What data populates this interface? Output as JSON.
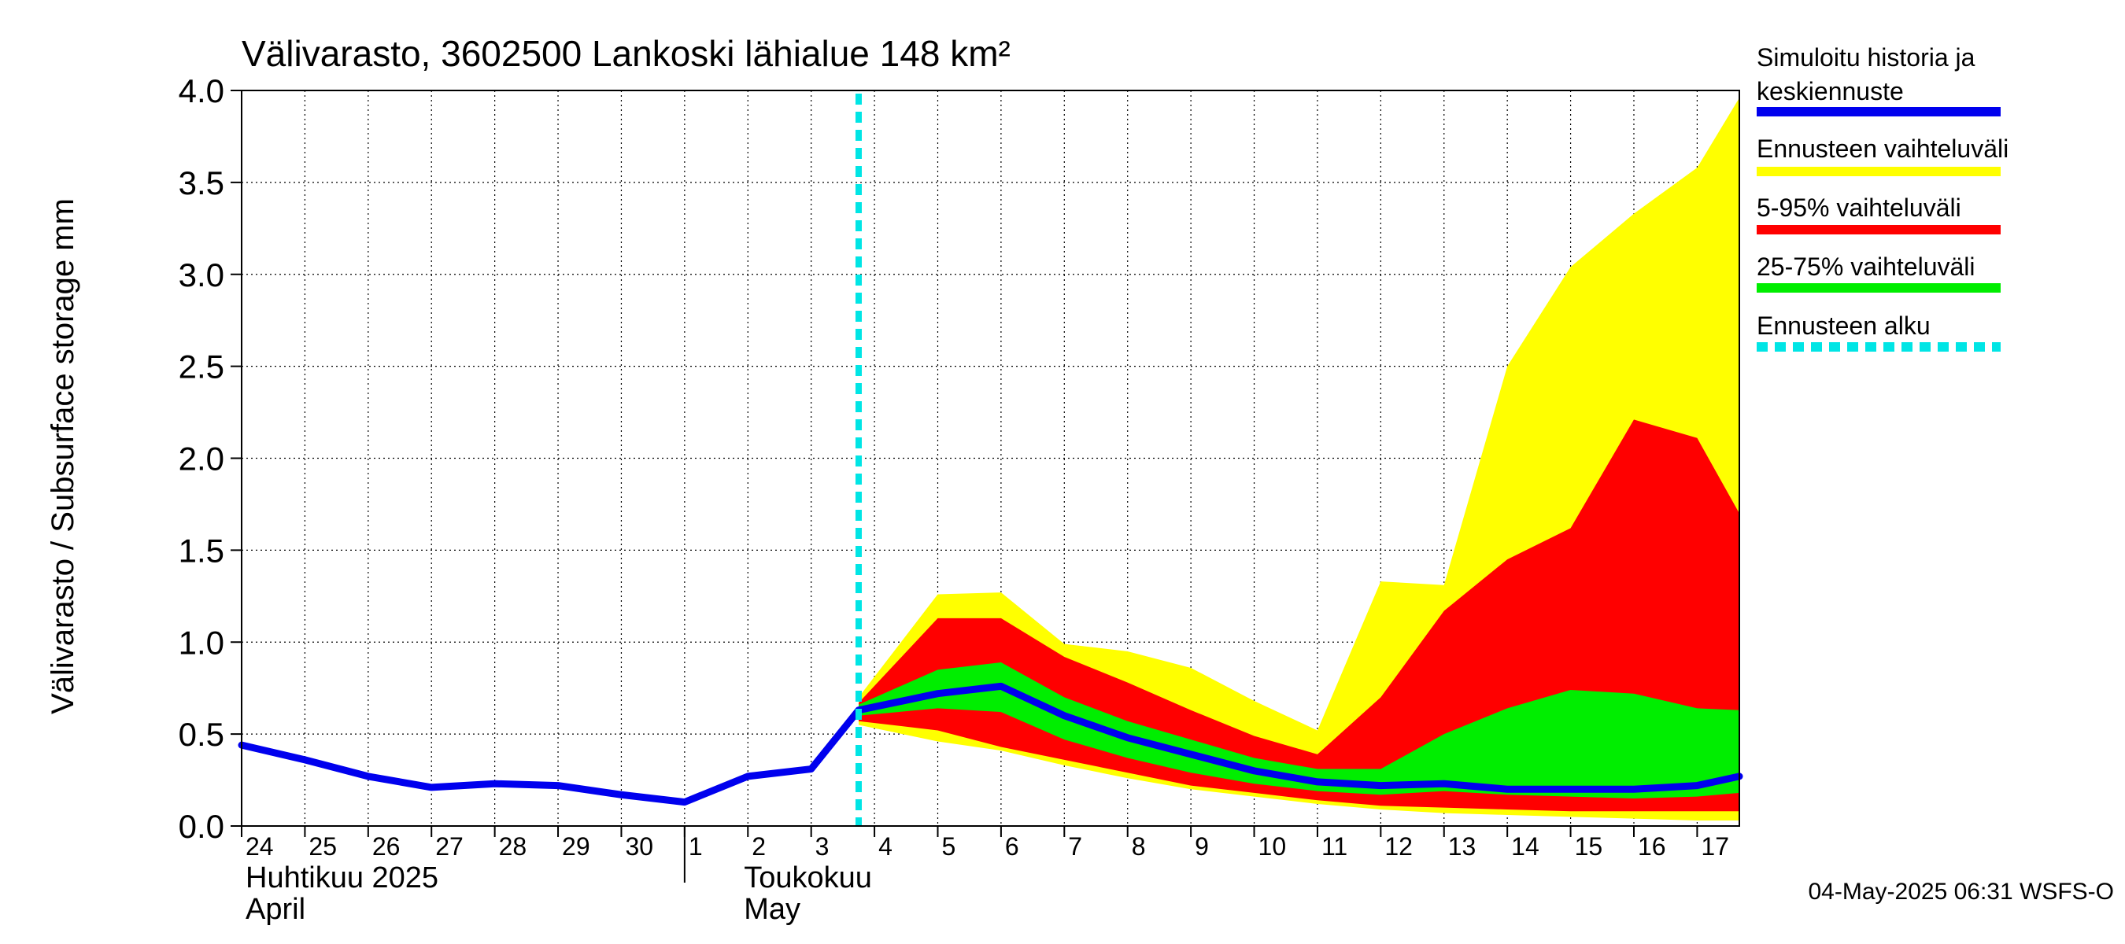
{
  "chart_data": {
    "type": "area",
    "title": "Välivarasto, 3602500 Lankoski lähialue 148 km²",
    "ylabel": "Välivarasto / Subsurface storage  mm",
    "ylim": [
      0.0,
      4.0
    ],
    "yticks": [
      "0.0",
      "0.5",
      "1.0",
      "1.5",
      "2.0",
      "2.5",
      "3.0",
      "3.5",
      "4.0"
    ],
    "xlim": [
      "2025-04-24",
      "2025-05-17T16:00"
    ],
    "day_labels": [
      "24",
      "25",
      "26",
      "27",
      "28",
      "29",
      "30",
      "1",
      "2",
      "3",
      "4",
      "5",
      "6",
      "7",
      "8",
      "9",
      "10",
      "11",
      "12",
      "13",
      "14",
      "15",
      "16",
      "17"
    ],
    "month_labels": [
      {
        "fi": "Huhtikuu  2025",
        "en": "April"
      },
      {
        "fi": "Toukokuu",
        "en": "May"
      }
    ],
    "forecast_start": "2025-05-03T18:00",
    "grid": true,
    "legend_position": "right",
    "legend": [
      {
        "label": "Simuloitu historia ja keskiennuste",
        "color": "#0000ee"
      },
      {
        "label": "Ennusteen vaihteluväli",
        "color": "#ffff00"
      },
      {
        "label": "5-95% vaihteluväli",
        "color": "#ff0000"
      },
      {
        "label": "25-75% vaihteluväli",
        "color": "#00ee00"
      },
      {
        "label": "Ennusteen alku",
        "color": "#00e5e5"
      }
    ],
    "history": {
      "x": [
        "2025-04-24",
        "2025-04-25",
        "2025-04-26",
        "2025-04-27",
        "2025-04-28",
        "2025-04-29",
        "2025-04-30",
        "2025-05-01",
        "2025-05-02",
        "2025-05-03",
        "2025-05-03T18:00"
      ],
      "y": [
        0.44,
        0.36,
        0.27,
        0.21,
        0.23,
        0.22,
        0.17,
        0.13,
        0.27,
        0.31,
        0.63
      ]
    },
    "forecast": {
      "x": [
        "2025-05-03T18:00",
        "2025-05-05",
        "2025-05-06",
        "2025-05-07",
        "2025-05-08",
        "2025-05-09",
        "2025-05-10",
        "2025-05-11",
        "2025-05-12",
        "2025-05-13",
        "2025-05-14",
        "2025-05-15",
        "2025-05-16",
        "2025-05-17",
        "2025-05-17T16:00"
      ],
      "mean": [
        0.63,
        0.72,
        0.76,
        0.6,
        0.48,
        0.39,
        0.3,
        0.24,
        0.22,
        0.23,
        0.2,
        0.2,
        0.2,
        0.22,
        0.27
      ],
      "range_min": [
        0.55,
        0.46,
        0.41,
        0.33,
        0.26,
        0.2,
        0.16,
        0.12,
        0.09,
        0.07,
        0.06,
        0.05,
        0.04,
        0.03,
        0.03
      ],
      "range_max": [
        0.7,
        1.26,
        1.27,
        0.99,
        0.95,
        0.86,
        0.68,
        0.52,
        1.33,
        1.31,
        2.5,
        3.04,
        3.33,
        3.58,
        3.96
      ],
      "p05": [
        0.57,
        0.52,
        0.43,
        0.36,
        0.29,
        0.22,
        0.18,
        0.14,
        0.11,
        0.1,
        0.09,
        0.08,
        0.08,
        0.08,
        0.08
      ],
      "p95": [
        0.67,
        1.13,
        1.13,
        0.92,
        0.78,
        0.63,
        0.49,
        0.39,
        0.7,
        1.17,
        1.45,
        1.62,
        2.21,
        2.11,
        1.7
      ],
      "p25": [
        0.6,
        0.64,
        0.62,
        0.47,
        0.37,
        0.29,
        0.23,
        0.19,
        0.17,
        0.19,
        0.17,
        0.16,
        0.15,
        0.16,
        0.18
      ],
      "p75": [
        0.66,
        0.85,
        0.89,
        0.7,
        0.57,
        0.47,
        0.37,
        0.31,
        0.31,
        0.5,
        0.64,
        0.74,
        0.72,
        0.64,
        0.63
      ]
    }
  },
  "footer": {
    "timestamp": "04-May-2025 06:31 WSFS-O"
  }
}
